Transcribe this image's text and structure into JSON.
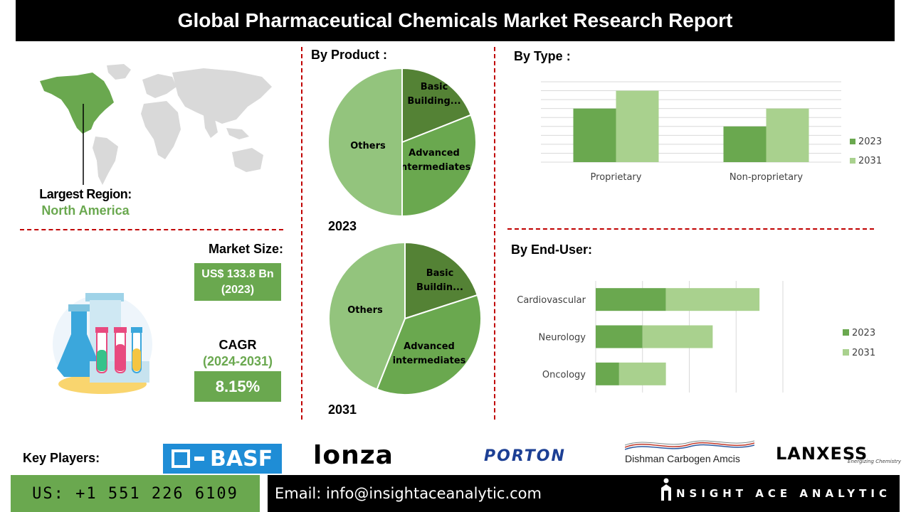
{
  "title": "Global Pharmaceutical Chemicals Market Research Report",
  "region": {
    "label": "Largest Region:",
    "value": "North America"
  },
  "market_size": {
    "label": "Market Size:",
    "value_line1": "US$ 133.8 Bn",
    "value_line2": "(2023)"
  },
  "cagr": {
    "label": "CAGR",
    "period": "(2024-2031)",
    "value": "8.15%"
  },
  "by_product": {
    "title": "By Product :",
    "year_2023": "2023",
    "year_2031": "2031"
  },
  "by_type": {
    "title": "By Type :"
  },
  "by_end_user": {
    "title": "By End-User:"
  },
  "key_players": {
    "label": "Key Players:",
    "companies": [
      "BASF",
      "Lonza",
      "PORTON",
      "Dishman Carbogen Amcis",
      "LANXESS"
    ],
    "lanxess_tagline": "Energizing Chemistry"
  },
  "footer": {
    "phone": "US: +1 551 226 6109",
    "email": "Email: info@insightaceanalytic.com",
    "brand": "INSIGHT ACE ANALYTIC"
  },
  "colors": {
    "dark_green": "#548235",
    "mid_green": "#6aa84f",
    "light_green": "#93c47d",
    "pale_green": "#a9d18e",
    "accent_red": "#c00000"
  },
  "chart_data": [
    {
      "type": "pie",
      "year": "2023",
      "slices": [
        {
          "label": "Basic Building...",
          "value": 19
        },
        {
          "label": "Advanced intermediates",
          "value": 31
        },
        {
          "label": "Others",
          "value": 50
        }
      ]
    },
    {
      "type": "pie",
      "year": "2031",
      "slices": [
        {
          "label": "Basic Buildin...",
          "value": 20
        },
        {
          "label": "Advanced intermediates",
          "value": 36
        },
        {
          "label": "Others",
          "value": 44
        }
      ]
    },
    {
      "type": "bar",
      "categories": [
        "Proprietary",
        "Non-proprietary"
      ],
      "series": [
        {
          "name": "2023",
          "values": [
            3,
            2
          ]
        },
        {
          "name": "2031",
          "values": [
            4,
            3
          ]
        }
      ],
      "ylim": [
        0,
        4.5
      ],
      "grid": true,
      "legend": "right"
    },
    {
      "type": "bar",
      "orientation": "horizontal",
      "stacked": true,
      "categories": [
        "Cardiovascular",
        "Neurology",
        "Oncology"
      ],
      "series": [
        {
          "name": "2023",
          "values": [
            3,
            2,
            1
          ]
        },
        {
          "name": "2031",
          "values": [
            4,
            3,
            2
          ]
        }
      ],
      "xlim": [
        0,
        8
      ],
      "grid": true,
      "legend": "right"
    }
  ]
}
